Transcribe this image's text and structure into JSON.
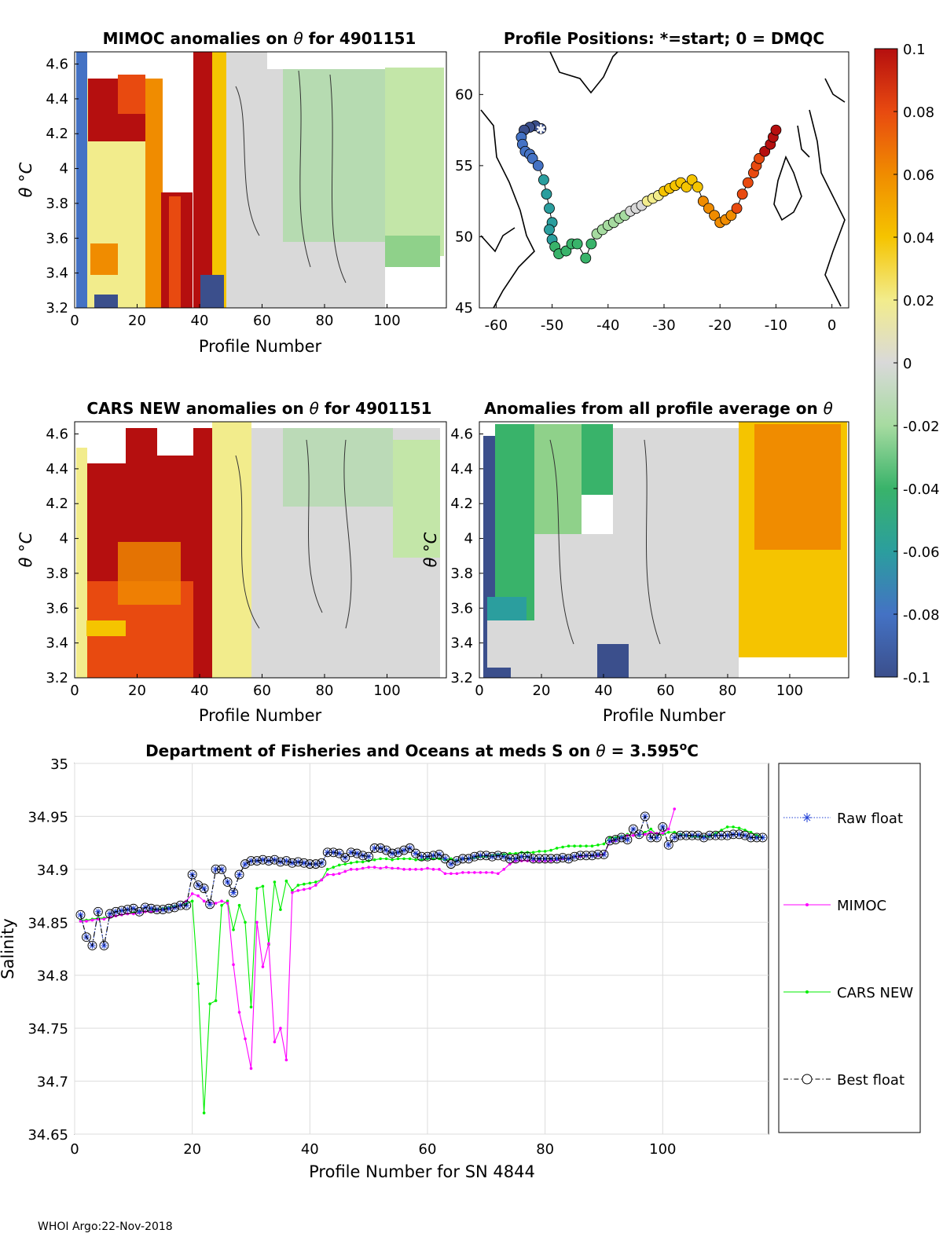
{
  "footer": "WHOI Argo:22-Nov-2018",
  "colorbar": {
    "ticks": [
      0.1,
      0.08,
      0.06,
      0.04,
      0.02,
      0,
      -0.02,
      -0.04,
      -0.06,
      -0.08,
      -0.1
    ],
    "tick_labels": [
      "0.1",
      "0.08",
      "0.06",
      "0.04",
      "0.02",
      "0",
      "-0.02",
      "-0.04",
      "-0.06",
      "-0.08",
      "-0.1"
    ],
    "colors": [
      "#3b4f8c",
      "#4472c4",
      "#2b9e9e",
      "#39b36a",
      "#a6dba0",
      "#d9d9d9",
      "#f2ec8c",
      "#f5c400",
      "#f08c00",
      "#e84a10",
      "#b50f0f"
    ]
  },
  "panels": {
    "mimoc": {
      "title_pre": "MIMOC anomalies on ",
      "title_sym": "θ",
      "title_post": "  for 4901151",
      "xlabel": "Profile Number",
      "ylabel": "θ °C",
      "xticks": [
        "0",
        "20",
        "40",
        "60",
        "80",
        "100"
      ],
      "yticks": [
        "4.6",
        "4.4",
        "4.2",
        "4",
        "3.8",
        "3.6",
        "3.4",
        "3.2"
      ]
    },
    "map": {
      "title": "Profile Positions: *=start; 0 = DMQC",
      "xticks": [
        "-60",
        "-50",
        "-40",
        "-30",
        "-20",
        "-10",
        "0"
      ],
      "yticks": [
        "60",
        "55",
        "50",
        "45"
      ]
    },
    "cars": {
      "title_pre": "CARS NEW anomalies on ",
      "title_sym": "θ",
      "title_post": " for 4901151",
      "xlabel": "Profile Number",
      "ylabel": "θ °C",
      "xticks": [
        "0",
        "20",
        "40",
        "60",
        "80",
        "100"
      ],
      "yticks": [
        "4.6",
        "4.4",
        "4.2",
        "4",
        "3.8",
        "3.6",
        "3.4",
        "3.2"
      ]
    },
    "avg": {
      "title_pre": "Anomalies from all profile average on ",
      "title_sym": "θ",
      "xlabel": "Profile Number",
      "ylabel": "θ °C",
      "xticks": [
        "0",
        "20",
        "40",
        "60",
        "80",
        "100"
      ],
      "yticks": [
        "4.6",
        "4.4",
        "4.2",
        "4",
        "3.8",
        "3.6",
        "3.4",
        "3.2"
      ]
    }
  },
  "chart_data": {
    "type": "line",
    "title_pre": "Department of Fisheries and Oceans at meds S on ",
    "title_sym": "θ",
    "title_post": " = 3.595",
    "title_sup": "o",
    "title_unit": "C",
    "xlabel": "Profile Number for SN 4844",
    "ylabel": "Salinity",
    "xlim": [
      0,
      118
    ],
    "ylim": [
      34.65,
      35
    ],
    "xticks": [
      0,
      20,
      40,
      60,
      80,
      100
    ],
    "xtick_labels": [
      "0",
      "20",
      "40",
      "60",
      "80",
      "100"
    ],
    "yticks": [
      34.65,
      34.7,
      34.75,
      34.8,
      34.85,
      34.9,
      34.95,
      35
    ],
    "ytick_labels": [
      "34.65",
      "34.7",
      "34.75",
      "34.8",
      "34.85",
      "34.9",
      "34.95",
      "35"
    ],
    "grid": true,
    "legend": "right-outside",
    "series": [
      {
        "name": "Raw float",
        "color": "#1f3fd6",
        "style": "dotted-star",
        "x": [
          1,
          2,
          3,
          4,
          5,
          6,
          7,
          8,
          9,
          10,
          11,
          12,
          13,
          14,
          15,
          16,
          17,
          18,
          19,
          20,
          21,
          22,
          23,
          24,
          25,
          26,
          27,
          28,
          29,
          30,
          31,
          32,
          33,
          34,
          35,
          36,
          37,
          38,
          39,
          40,
          41,
          42,
          43,
          44,
          45,
          46,
          47,
          48,
          49,
          50,
          51,
          52,
          53,
          54,
          55,
          56,
          57,
          58,
          59,
          60,
          61,
          62,
          63,
          64,
          65,
          66,
          67,
          68,
          69,
          70,
          71,
          72,
          73,
          74,
          75,
          76,
          77,
          78,
          79,
          80,
          81,
          82,
          83,
          84,
          85,
          86,
          87,
          88,
          89,
          90,
          91,
          92,
          93,
          94,
          95,
          96,
          97,
          98,
          99,
          100,
          101,
          102,
          103,
          104,
          105,
          106,
          107,
          108,
          109,
          110,
          111,
          112,
          113,
          114,
          115,
          116,
          117
        ],
        "y": [
          34.857,
          34.836,
          34.828,
          34.86,
          34.828,
          34.858,
          34.86,
          34.861,
          34.862,
          34.863,
          34.86,
          34.864,
          34.863,
          34.862,
          34.862,
          34.863,
          34.864,
          34.866,
          34.866,
          34.895,
          34.885,
          34.882,
          34.867,
          34.9,
          34.9,
          34.888,
          34.878,
          34.895,
          34.905,
          34.908,
          34.908,
          34.909,
          34.908,
          34.909,
          34.907,
          34.908,
          34.906,
          34.907,
          34.906,
          34.905,
          34.905,
          34.906,
          34.916,
          34.916,
          34.915,
          34.911,
          34.916,
          34.915,
          34.913,
          34.912,
          34.92,
          34.92,
          34.918,
          34.915,
          34.916,
          34.918,
          34.92,
          34.915,
          34.912,
          34.912,
          34.913,
          34.914,
          34.91,
          34.905,
          34.908,
          34.91,
          34.91,
          34.912,
          34.913,
          34.913,
          34.912,
          34.913,
          34.912,
          34.91,
          34.91,
          34.912,
          34.912,
          34.91,
          34.91,
          34.91,
          34.91,
          34.91,
          34.911,
          34.91,
          34.912,
          34.913,
          34.913,
          34.913,
          34.914,
          34.914,
          34.927,
          34.928,
          34.93,
          34.928,
          34.938,
          34.933,
          34.95,
          34.93,
          34.93,
          34.94,
          34.923,
          34.93,
          34.932,
          34.932,
          34.932,
          34.932,
          34.93,
          34.932,
          34.932,
          34.932,
          34.932,
          34.933,
          34.933,
          34.932,
          34.93,
          34.93,
          34.93
        ]
      },
      {
        "name": "MIMOC",
        "color": "#ff00ff",
        "style": "solid-dot",
        "x": [
          1,
          2,
          3,
          4,
          5,
          6,
          7,
          8,
          9,
          10,
          11,
          12,
          13,
          14,
          15,
          16,
          17,
          18,
          19,
          20,
          21,
          22,
          23,
          24,
          25,
          26,
          27,
          28,
          29,
          30,
          31,
          32,
          33,
          34,
          35,
          36,
          37,
          38,
          39,
          40,
          41,
          42,
          43,
          44,
          45,
          46,
          47,
          48,
          49,
          50,
          51,
          52,
          53,
          54,
          55,
          56,
          57,
          58,
          59,
          60,
          61,
          62,
          63,
          64,
          65,
          66,
          67,
          68,
          69,
          70,
          71,
          72,
          73,
          74,
          75,
          76,
          77,
          78,
          79,
          80,
          81,
          82,
          83,
          84,
          85,
          86,
          87,
          88,
          89,
          90,
          91,
          92,
          93,
          94,
          95,
          96,
          97,
          98,
          99,
          100,
          101,
          102
        ],
        "y": [
          34.851,
          34.851,
          34.852,
          34.853,
          34.853,
          34.855,
          34.856,
          34.857,
          34.858,
          34.858,
          34.859,
          34.86,
          34.86,
          34.861,
          34.862,
          34.863,
          34.864,
          34.866,
          34.87,
          34.877,
          34.875,
          34.87,
          34.868,
          34.868,
          34.87,
          34.868,
          34.81,
          34.765,
          34.74,
          34.712,
          34.85,
          34.808,
          34.83,
          34.737,
          34.75,
          34.72,
          34.878,
          34.88,
          34.881,
          34.882,
          34.885,
          34.89,
          34.895,
          34.895,
          34.896,
          34.898,
          34.9,
          34.9,
          34.901,
          34.902,
          34.902,
          34.901,
          34.902,
          34.901,
          34.901,
          34.9,
          34.9,
          34.9,
          34.9,
          34.901,
          34.9,
          34.9,
          34.896,
          34.896,
          34.896,
          34.897,
          34.897,
          34.897,
          34.897,
          34.897,
          34.897,
          34.896,
          34.9,
          34.905,
          34.908,
          34.908,
          34.908,
          34.908,
          34.908,
          34.908,
          34.908,
          34.909,
          34.91,
          34.91,
          34.912,
          34.912,
          34.913,
          34.913,
          34.913,
          34.914,
          34.926,
          34.927,
          34.93,
          34.932,
          34.932,
          34.933,
          34.933,
          34.935,
          34.934,
          34.934,
          34.938,
          34.957
        ]
      },
      {
        "name": "CARS NEW",
        "color": "#00ee00",
        "style": "solid-dot",
        "x": [
          1,
          2,
          3,
          4,
          5,
          6,
          7,
          8,
          9,
          10,
          11,
          12,
          13,
          14,
          15,
          16,
          17,
          18,
          19,
          20,
          21,
          22,
          23,
          24,
          25,
          26,
          27,
          28,
          29,
          30,
          31,
          32,
          33,
          34,
          35,
          36,
          37,
          38,
          39,
          40,
          41,
          42,
          43,
          44,
          45,
          46,
          47,
          48,
          49,
          50,
          51,
          52,
          53,
          54,
          55,
          56,
          57,
          58,
          59,
          60,
          61,
          62,
          63,
          64,
          65,
          66,
          67,
          68,
          69,
          70,
          71,
          72,
          73,
          74,
          75,
          76,
          77,
          78,
          79,
          80,
          81,
          82,
          83,
          84,
          85,
          86,
          87,
          88,
          89,
          90,
          91,
          92,
          93,
          94,
          95,
          96,
          97,
          98,
          99,
          100,
          101,
          102,
          103,
          104,
          105,
          106,
          107,
          108,
          109,
          110,
          111,
          112,
          113,
          114,
          115,
          116,
          117
        ],
        "y": [
          34.852,
          34.852,
          34.853,
          34.854,
          34.854,
          34.855,
          34.856,
          34.857,
          34.858,
          34.859,
          34.86,
          34.86,
          34.861,
          34.862,
          34.863,
          34.864,
          34.865,
          34.866,
          34.868,
          34.87,
          34.792,
          34.67,
          34.773,
          34.776,
          34.866,
          34.87,
          34.843,
          34.866,
          34.85,
          34.77,
          34.882,
          34.884,
          34.829,
          34.888,
          34.862,
          34.889,
          34.88,
          34.885,
          34.886,
          34.887,
          34.888,
          34.89,
          34.9,
          34.902,
          34.904,
          34.905,
          34.906,
          34.907,
          34.907,
          34.908,
          34.909,
          34.91,
          34.91,
          34.909,
          34.91,
          34.91,
          34.91,
          34.909,
          34.909,
          34.91,
          34.91,
          34.91,
          34.909,
          34.91,
          34.908,
          34.91,
          34.91,
          34.911,
          34.912,
          34.912,
          34.913,
          34.914,
          34.914,
          34.915,
          34.915,
          34.916,
          34.916,
          34.916,
          34.917,
          34.917,
          34.918,
          34.92,
          34.921,
          34.922,
          34.922,
          34.922,
          34.922,
          34.922,
          34.923,
          34.924,
          34.93,
          34.93,
          34.931,
          34.933,
          34.932,
          34.932,
          34.935,
          34.938,
          34.933,
          34.933,
          34.935,
          34.935,
          34.933,
          34.932,
          34.931,
          34.931,
          34.931,
          34.931,
          34.934,
          34.937,
          34.94,
          34.94,
          34.939,
          34.937,
          34.935,
          34.932,
          34.93
        ]
      },
      {
        "name": "Best float",
        "color": "#000000",
        "style": "dashdot-circle",
        "x": [
          1,
          2,
          3,
          4,
          5,
          6,
          7,
          8,
          9,
          10,
          11,
          12,
          13,
          14,
          15,
          16,
          17,
          18,
          19,
          20,
          21,
          22,
          23,
          24,
          25,
          26,
          27,
          28,
          29,
          30,
          31,
          32,
          33,
          34,
          35,
          36,
          37,
          38,
          39,
          40,
          41,
          42,
          43,
          44,
          45,
          46,
          47,
          48,
          49,
          50,
          51,
          52,
          53,
          54,
          55,
          56,
          57,
          58,
          59,
          60,
          61,
          62,
          63,
          64,
          65,
          66,
          67,
          68,
          69,
          70,
          71,
          72,
          73,
          74,
          75,
          76,
          77,
          78,
          79,
          80,
          81,
          82,
          83,
          84,
          85,
          86,
          87,
          88,
          89,
          90,
          91,
          92,
          93,
          94,
          95,
          96,
          97,
          98,
          99,
          100,
          101,
          102,
          103,
          104,
          105,
          106,
          107,
          108,
          109,
          110,
          111,
          112,
          113,
          114,
          115,
          116,
          117
        ],
        "y": [
          34.857,
          34.836,
          34.828,
          34.86,
          34.828,
          34.858,
          34.86,
          34.861,
          34.862,
          34.863,
          34.86,
          34.864,
          34.863,
          34.862,
          34.862,
          34.863,
          34.864,
          34.866,
          34.866,
          34.895,
          34.885,
          34.882,
          34.867,
          34.9,
          34.9,
          34.888,
          34.878,
          34.895,
          34.905,
          34.908,
          34.908,
          34.909,
          34.908,
          34.909,
          34.907,
          34.908,
          34.906,
          34.907,
          34.906,
          34.905,
          34.905,
          34.906,
          34.916,
          34.916,
          34.915,
          34.911,
          34.916,
          34.915,
          34.913,
          34.912,
          34.92,
          34.92,
          34.918,
          34.915,
          34.916,
          34.918,
          34.92,
          34.915,
          34.912,
          34.912,
          34.913,
          34.914,
          34.91,
          34.905,
          34.908,
          34.91,
          34.91,
          34.912,
          34.913,
          34.913,
          34.912,
          34.913,
          34.912,
          34.91,
          34.91,
          34.912,
          34.912,
          34.91,
          34.91,
          34.91,
          34.91,
          34.91,
          34.911,
          34.91,
          34.912,
          34.913,
          34.913,
          34.913,
          34.914,
          34.914,
          34.927,
          34.928,
          34.93,
          34.928,
          34.938,
          34.933,
          34.95,
          34.93,
          34.93,
          34.94,
          34.923,
          34.93,
          34.932,
          34.932,
          34.932,
          34.932,
          34.93,
          34.932,
          34.932,
          34.932,
          34.932,
          34.933,
          34.933,
          34.932,
          34.93,
          34.93,
          34.93
        ]
      }
    ]
  }
}
